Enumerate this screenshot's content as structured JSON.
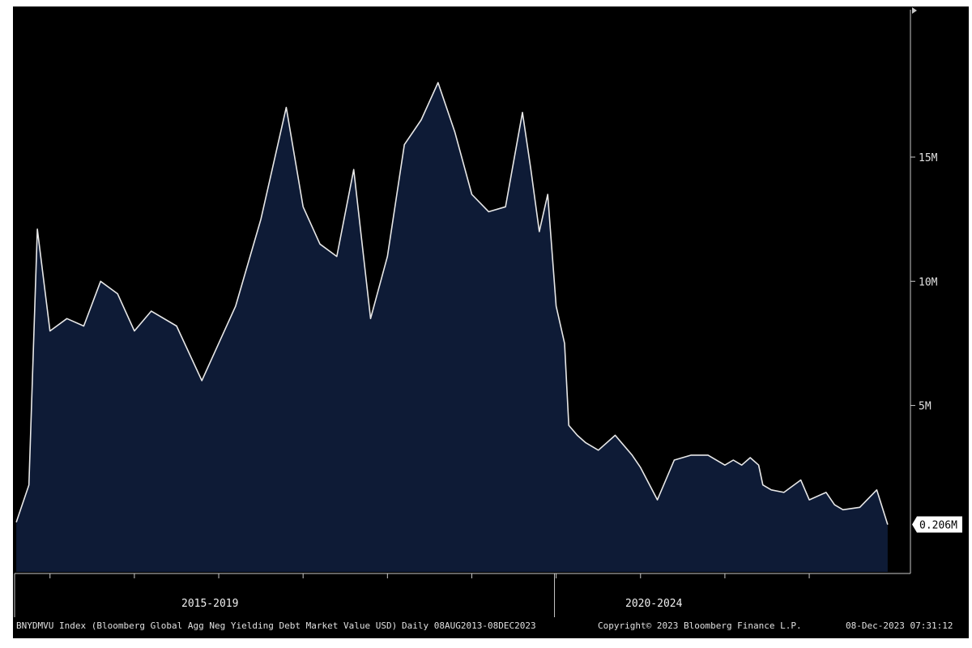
{
  "chart_data": {
    "type": "area",
    "title": "",
    "xlabel": "",
    "ylabel": "",
    "series": [
      {
        "name": "",
        "x": [
          2013.6,
          2013.75,
          2013.85,
          2014.0,
          2014.2,
          2014.4,
          2014.6,
          2014.8,
          2015.0,
          2015.2,
          2015.5,
          2015.8,
          2016.0,
          2016.2,
          2016.5,
          2016.8,
          2017.0,
          2017.2,
          2017.4,
          2017.6,
          2017.8,
          2018.0,
          2018.2,
          2018.4,
          2018.6,
          2018.8,
          2019.0,
          2019.2,
          2019.4,
          2019.6,
          2019.7,
          2019.8,
          2019.9,
          2020.0,
          2020.1,
          2020.15,
          2020.25,
          2020.35,
          2020.5,
          2020.7,
          2020.9,
          2021.0,
          2021.2,
          2021.4,
          2021.6,
          2021.8,
          2022.0,
          2022.1,
          2022.2,
          2022.3,
          2022.4,
          2022.45,
          2022.55,
          2022.7,
          2022.9,
          2023.0,
          2023.2,
          2023.3,
          2023.4,
          2023.6,
          2023.8,
          2023.93
        ],
        "values": [
          0.3,
          1.8,
          12.1,
          8.0,
          8.5,
          8.2,
          10.0,
          9.5,
          8.0,
          8.8,
          8.2,
          6.0,
          7.5,
          9.0,
          12.5,
          17.0,
          13.0,
          11.5,
          11.0,
          14.5,
          8.5,
          11.0,
          15.5,
          16.5,
          18.0,
          16.0,
          13.5,
          12.8,
          13.0,
          16.8,
          14.5,
          12.0,
          13.5,
          9.0,
          7.5,
          4.2,
          3.8,
          3.5,
          3.2,
          3.8,
          3.0,
          2.5,
          1.2,
          2.8,
          3.0,
          3.0,
          2.6,
          2.8,
          2.6,
          2.9,
          2.6,
          1.8,
          1.6,
          1.5,
          2.0,
          1.2,
          1.5,
          1.0,
          0.8,
          0.9,
          1.6,
          0.206
        ]
      }
    ],
    "ylim": [
      -1.7,
      21
    ],
    "xlim": [
      2013.58,
      2023.95
    ],
    "y_ticks": [
      {
        "value": 5,
        "label": "5M"
      },
      {
        "value": 10,
        "label": "10M"
      },
      {
        "value": 15,
        "label": "15M"
      }
    ],
    "x_periods": [
      {
        "label": "2015-2019",
        "from": 2013.58,
        "to": 2019.98
      },
      {
        "label": "2020-2024",
        "from": 2019.98,
        "to": 2023.95
      }
    ],
    "last_value_label": "0.206M",
    "grid": false,
    "colors": {
      "background": "#000000",
      "area_fill": "#0e1b36",
      "line": "#e8e8e8",
      "axis": "#c8c8c8",
      "text": "#e0e0e0"
    }
  },
  "footer": {
    "ticker": "BNYDMVU Index (Bloomberg Global Agg Neg Yielding Debt Market Value USD)",
    "range": "Daily 08AUG2013-08DEC2023",
    "copyright": "Copyright© 2023 Bloomberg Finance L.P.",
    "timestamp": "08-Dec-2023 07:31:12"
  }
}
